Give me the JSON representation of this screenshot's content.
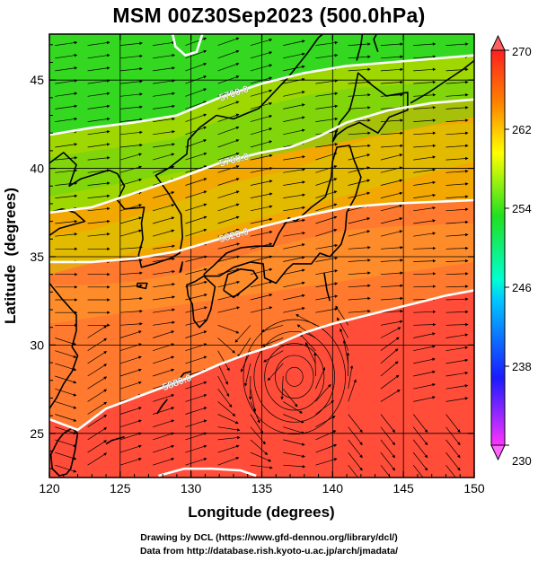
{
  "title": "MSM 00Z30Sep2023 (500.0hPa)",
  "chart_data": {
    "type": "heatmap",
    "title": "MSM 00Z30Sep2023 (500.0hPa)",
    "xlabel": "Longitude (degrees)",
    "ylabel": "Latitude  (degrees)",
    "xlim": [
      120,
      150
    ],
    "ylim": [
      22.5,
      47.6
    ],
    "x_ticks": [
      "120",
      "125",
      "130",
      "135",
      "140",
      "145",
      "150"
    ],
    "y_ticks": [
      "25",
      "30",
      "35",
      "40",
      "45"
    ],
    "grid": true,
    "colorbar": {
      "range": [
        230,
        270
      ],
      "ticks": [
        "230",
        "238",
        "246",
        "254",
        "262",
        "270"
      ],
      "colors": [
        "#ff33ff",
        "#1a1aff",
        "#00ffd0",
        "#20e020",
        "#ffff00",
        "#ff8000",
        "#ff2020"
      ]
    },
    "contours": [
      {
        "label": "5880.0",
        "points": [
          [
            120,
            25.8
          ],
          [
            122,
            25.2
          ],
          [
            124,
            26.4
          ],
          [
            126,
            27.0
          ],
          [
            128,
            27.6
          ],
          [
            130,
            28.2
          ],
          [
            132,
            28.9
          ],
          [
            134,
            29.5
          ],
          [
            136,
            30.0
          ],
          [
            138,
            30.7
          ],
          [
            140,
            31.2
          ],
          [
            142,
            31.6
          ],
          [
            144,
            32.0
          ],
          [
            146,
            32.4
          ],
          [
            148,
            32.8
          ],
          [
            150,
            33.1
          ]
        ]
      },
      {
        "label": "5820.0",
        "points": [
          [
            120,
            34.7
          ],
          [
            123,
            34.7
          ],
          [
            126,
            34.9
          ],
          [
            129,
            35.3
          ],
          [
            132,
            36.0
          ],
          [
            135,
            36.7
          ],
          [
            138,
            37.3
          ],
          [
            141,
            37.8
          ],
          [
            144,
            38.0
          ],
          [
            147,
            38.1
          ],
          [
            150,
            38.2
          ]
        ]
      },
      {
        "label": "5760.0",
        "points": [
          [
            120,
            37.5
          ],
          [
            123,
            37.8
          ],
          [
            126,
            38.6
          ],
          [
            129,
            39.4
          ],
          [
            132,
            40.3
          ],
          [
            135,
            40.9
          ],
          [
            137,
            41.2
          ],
          [
            139,
            41.8
          ],
          [
            141,
            42.6
          ],
          [
            144,
            43.3
          ],
          [
            147,
            43.7
          ],
          [
            150,
            43.9
          ]
        ]
      },
      {
        "label": "5700.0",
        "points": [
          [
            120,
            41.9
          ],
          [
            123,
            42.3
          ],
          [
            126,
            42.6
          ],
          [
            129,
            43.0
          ],
          [
            132,
            44.0
          ],
          [
            135,
            44.8
          ],
          [
            138,
            45.4
          ],
          [
            141,
            45.8
          ],
          [
            144,
            46.0
          ],
          [
            147,
            46.2
          ],
          [
            150,
            46.4
          ]
        ]
      },
      {
        "label": "",
        "points": [
          [
            128.7,
            47.6
          ],
          [
            128.9,
            46.9
          ],
          [
            129.6,
            46.4
          ],
          [
            130.4,
            46.6
          ],
          [
            130.8,
            47.6
          ]
        ]
      },
      {
        "label": "",
        "points": [
          [
            127.7,
            22.6
          ],
          [
            129.5,
            23.0
          ],
          [
            131.5,
            23.0
          ],
          [
            133.5,
            22.9
          ],
          [
            134.6,
            22.6
          ]
        ]
      }
    ],
    "vector_field": "wind streamlines",
    "vortex_center": [
      137.3,
      28.2
    ]
  },
  "footer": {
    "line1": "Drawing by DCL (https://www.gfd-dennou.org/library/dcl/)",
    "line2": "Data from http://database.rish.kyoto-u.ac.jp/arch/jmadata/"
  }
}
